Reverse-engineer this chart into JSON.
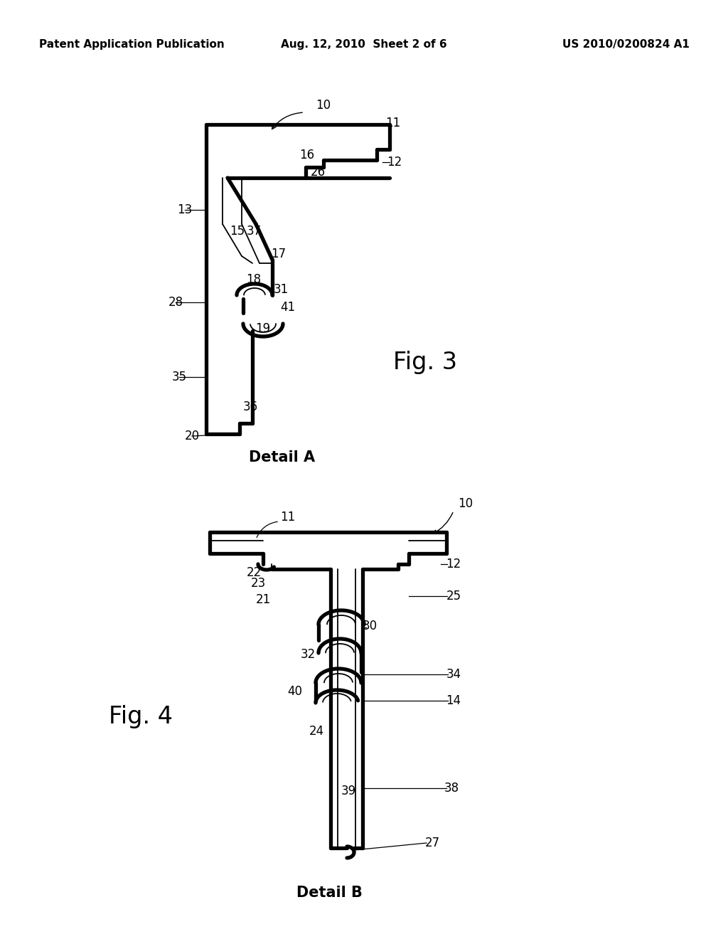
{
  "header_left": "Patent Application Publication",
  "header_center": "Aug. 12, 2010  Sheet 2 of 6",
  "header_right": "US 2010/0200824 A1",
  "fig3_label": "Fig. 3",
  "fig3_caption": "Detail A",
  "fig4_label": "Fig. 4",
  "fig4_caption": "Detail B",
  "line_color": "#000000",
  "bg_color": "#ffffff",
  "lw_thin": 1.3,
  "lw_thick": 3.8,
  "lw_med": 2.2,
  "annotation_fontsize": 12,
  "fig_label_fontsize": 24,
  "caption_fontsize": 15,
  "header_fontsize": 11
}
